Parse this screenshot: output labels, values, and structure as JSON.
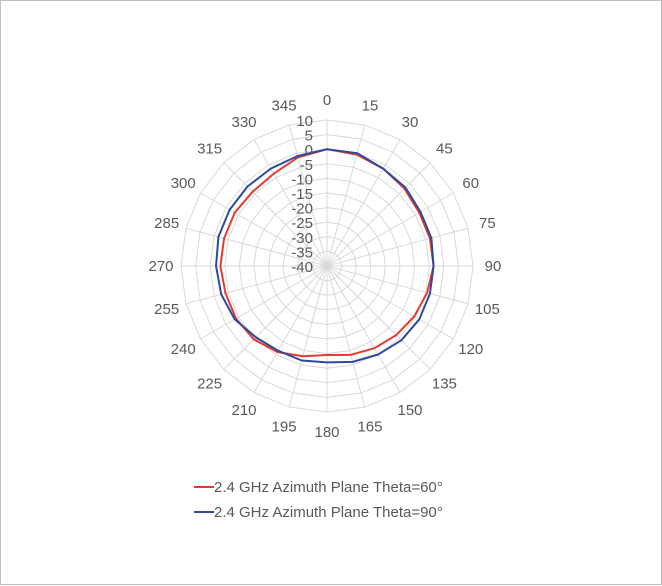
{
  "chart_data": {
    "type": "radar",
    "angles": [
      0,
      15,
      30,
      45,
      60,
      75,
      90,
      105,
      120,
      135,
      150,
      165,
      180,
      195,
      210,
      225,
      240,
      255,
      270,
      285,
      300,
      315,
      330,
      345
    ],
    "angle_labels": [
      "0",
      "15",
      "30",
      "45",
      "60",
      "75",
      "90",
      "105",
      "120",
      "135",
      "150",
      "165",
      "180",
      "195",
      "210",
      "225",
      "240",
      "255",
      "270",
      "285",
      "300",
      "315",
      "330",
      "345"
    ],
    "radial_ticks": [
      10,
      5,
      0,
      -5,
      -10,
      -15,
      -20,
      -25,
      -30,
      -35,
      -40
    ],
    "radial_tick_labels": [
      "10",
      "5",
      "0",
      "-5",
      "-10",
      "-15",
      "-20",
      "-25",
      "-30",
      "-35",
      "-40"
    ],
    "rlim": [
      -40,
      10
    ],
    "grid": true,
    "legend_position": "bottom",
    "series": [
      {
        "name": "2.4 GHz Azimuth Plane Theta=60°",
        "color": "#e03c31",
        "values": [
          0,
          -0.5,
          -1.5,
          -2.5,
          -3.5,
          -3.5,
          -3.5,
          -4.5,
          -5.5,
          -6.5,
          -7.5,
          -8.5,
          -9.5,
          -8.0,
          -6.0,
          -4.5,
          -4.0,
          -4.0,
          -3.5,
          -3.5,
          -3.5,
          -4.0,
          -3.5,
          -1.5
        ]
      },
      {
        "name": "2.4 GHz Azimuth Plane Theta=90°",
        "color": "#2e4a9e",
        "values": [
          0,
          0,
          -1.5,
          -2.0,
          -3.0,
          -3.0,
          -3.5,
          -3.5,
          -3.5,
          -4.0,
          -5.0,
          -6.0,
          -7.0,
          -6.5,
          -6.5,
          -5.5,
          -3.5,
          -2.5,
          -2.0,
          -1.5,
          -1.5,
          -1.5,
          -1.5,
          -1.0
        ]
      }
    ]
  }
}
